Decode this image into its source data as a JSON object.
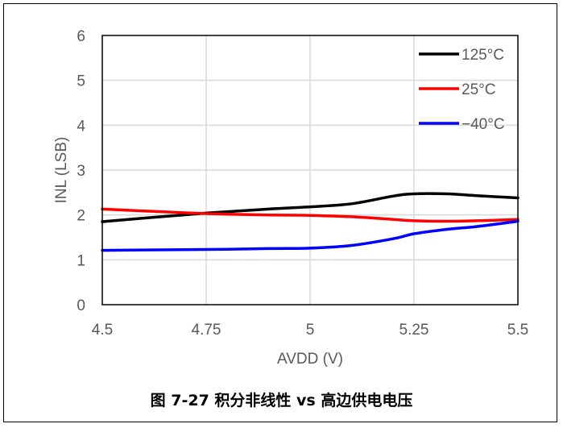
{
  "caption": "图 7-27 积分非线性 vs 高边供电电压",
  "chart_data": {
    "type": "line",
    "xlabel": "AVDD (V)",
    "ylabel": "INL (LSB)",
    "xlim": [
      4.5,
      5.5
    ],
    "ylim": [
      0,
      6
    ],
    "x_ticks": [
      "4.5",
      "4.75",
      "5",
      "5.25",
      "5.5"
    ],
    "y_ticks": [
      "0",
      "1",
      "2",
      "3",
      "4",
      "5",
      "6"
    ],
    "grid": true,
    "legend_position": "top-right",
    "series": [
      {
        "name": "125°C",
        "color": "#000000",
        "x": [
          4.5,
          4.6,
          4.75,
          4.9,
          5.0,
          5.1,
          5.2,
          5.25,
          5.33,
          5.4,
          5.5
        ],
        "y": [
          1.85,
          1.93,
          2.04,
          2.13,
          2.18,
          2.25,
          2.42,
          2.47,
          2.47,
          2.43,
          2.38
        ]
      },
      {
        "name": "25°C",
        "color": "#ff0000",
        "x": [
          4.5,
          4.6,
          4.75,
          4.9,
          5.0,
          5.1,
          5.2,
          5.25,
          5.33,
          5.4,
          5.5
        ],
        "y": [
          2.13,
          2.09,
          2.03,
          2.0,
          1.99,
          1.96,
          1.9,
          1.87,
          1.86,
          1.87,
          1.9
        ]
      },
      {
        "name": "−40°C",
        "color": "#0000ff",
        "x": [
          4.5,
          4.6,
          4.75,
          4.9,
          5.0,
          5.1,
          5.2,
          5.25,
          5.33,
          5.4,
          5.5
        ],
        "y": [
          1.21,
          1.22,
          1.23,
          1.25,
          1.26,
          1.32,
          1.47,
          1.58,
          1.68,
          1.74,
          1.86
        ]
      }
    ]
  }
}
